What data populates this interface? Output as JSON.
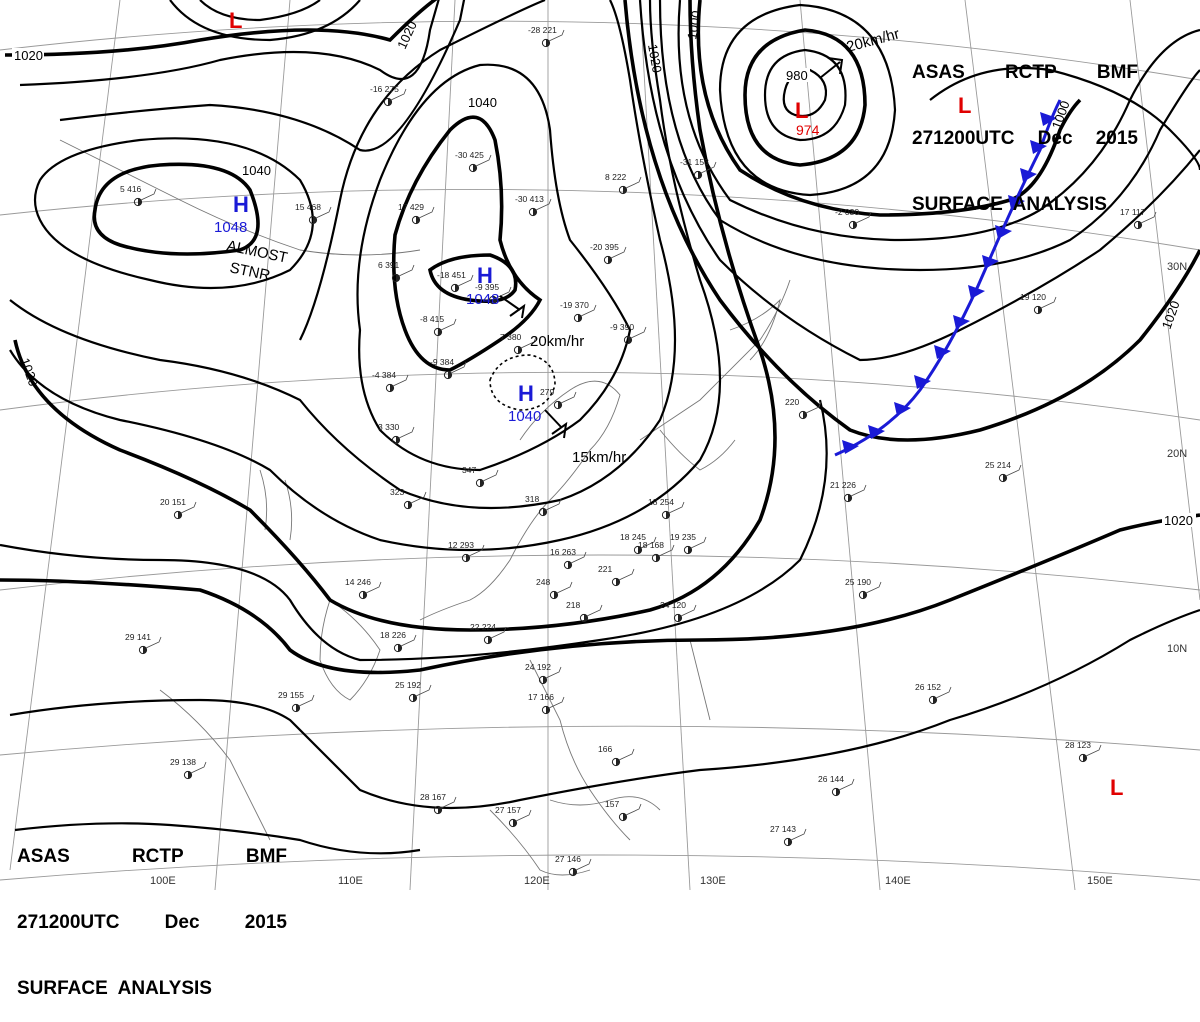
{
  "title_top": {
    "line1": [
      "ASAS",
      "RCTP",
      "BMF"
    ],
    "line2": [
      "271200UTC",
      "Dec",
      "2015"
    ],
    "line3": "SURFACE  ANALYSIS"
  },
  "title_bottom": {
    "line1": [
      "ASAS",
      "RCTP",
      "BMF"
    ],
    "line2": [
      "271200UTC",
      "Dec",
      "2015"
    ],
    "line3": "SURFACE  ANALYSIS"
  },
  "colors": {
    "high": "#1a1ad6",
    "low": "#e00000",
    "front": "#1a1ad6",
    "isobar": "#000000"
  },
  "highs": [
    {
      "id": "h1",
      "symbol": "H",
      "pressure": "1048",
      "note_1": "ALMOST",
      "note_2": "STNR"
    },
    {
      "id": "h2",
      "symbol": "H",
      "pressure": "1048",
      "motion": "20km/hr"
    },
    {
      "id": "h3",
      "symbol": "H",
      "pressure": "1040",
      "motion": "15km/hr"
    }
  ],
  "lows": [
    {
      "id": "l1",
      "symbol": "L",
      "pressure": "974",
      "motion": "20km/hr"
    },
    {
      "id": "l2",
      "symbol": "L"
    },
    {
      "id": "l3",
      "symbol": "L"
    },
    {
      "id": "l4",
      "symbol": "L"
    }
  ],
  "isobar_labels": {
    "a": "1020",
    "b": "1040",
    "c": "1040",
    "d": "1020",
    "e": "1020",
    "f": "1000",
    "g": "980",
    "h": "1000",
    "i": "1020",
    "j": "1020"
  },
  "latitudes": [
    "30N",
    "20N",
    "10N"
  ],
  "longitudes": [
    "100E",
    "110E",
    "120E",
    "130E",
    "140E",
    "150E"
  ],
  "station_obs": [
    "-28 221",
    "-16 275",
    "-30 425",
    "8 222",
    "-31 153",
    "-2 030",
    "17 117",
    "5 416",
    "15 468",
    "17 429",
    "-30 413",
    "-20 395",
    "6 391",
    "19 120",
    "-18 451",
    "-9 395",
    "-19 370",
    "-8 415",
    "-9 390",
    "7 380",
    "220",
    "-9 384",
    "279",
    "-4 384",
    "3 330",
    "347",
    "323",
    "318",
    "18 254",
    "20 151",
    "12 293",
    "16 263",
    "18 245",
    "19 235",
    "221",
    "25 214",
    "21 226",
    "14 246",
    "248",
    "218",
    "25 190",
    "24 120",
    "18 226",
    "22 224",
    "29 141",
    "24 192",
    "25 192",
    "17 166",
    "166",
    "29 155",
    "26 152",
    "28 123",
    "29 138",
    "28 167",
    "27 157",
    "157",
    "26 144",
    "27 143",
    "27 146",
    "18 168"
  ]
}
